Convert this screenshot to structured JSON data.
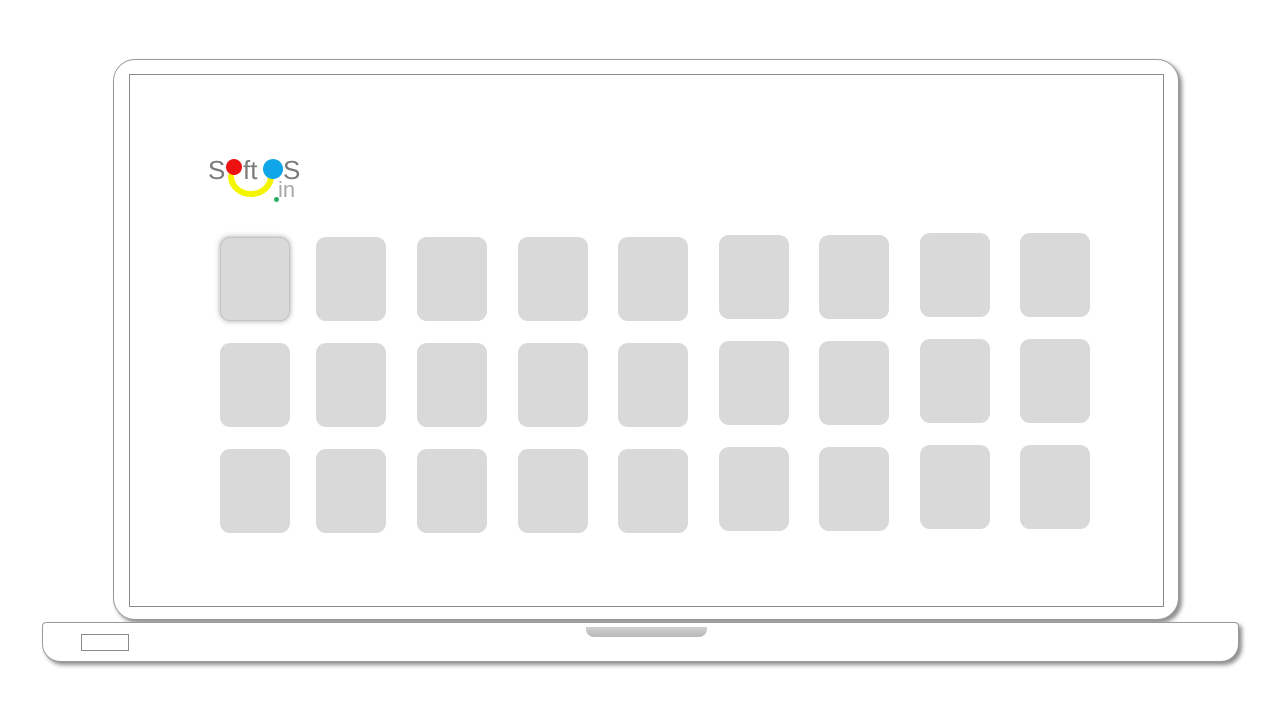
{
  "logo": {
    "brand_text": "SoftOS.in",
    "word_s1": "S",
    "word_ft": "ft",
    "word_s2": "S",
    "domain_suffix": "in",
    "colors": {
      "text": "#7a7a7a",
      "red_dot": "#ee1111",
      "blue_dot": "#0ea5e9",
      "smile": "#f5f500",
      "suffix": "#a9a9a9",
      "suffix_dot": "#27ae60"
    }
  },
  "desktop": {
    "tile_color": "#d9d9d9",
    "rows": 3,
    "columns": 9,
    "selected_tile": 0
  }
}
